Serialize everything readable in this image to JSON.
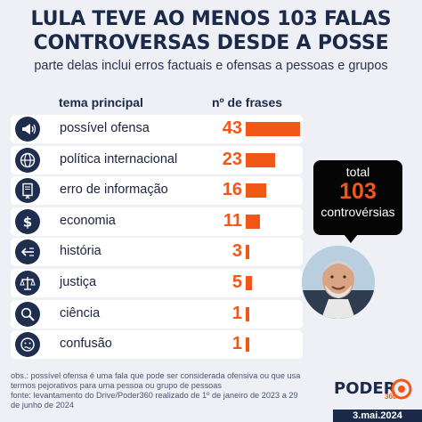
{
  "header": {
    "title_line1": "LULA TEVE AO MENOS 103 FALAS",
    "title_line2": "CONTROVERSAS DESDE A POSSE",
    "subtitle": "parte delas inclui erros factuais e ofensas a pessoas e grupos"
  },
  "columns": {
    "topic": "tema principal",
    "count": "nº de frases"
  },
  "chart_data": {
    "type": "bar",
    "orientation": "horizontal",
    "title": "LULA TEVE AO MENOS 103 FALAS CONTROVERSAS DESDE A POSSE",
    "subtitle": "parte delas inclui erros factuais e ofensas a pessoas e grupos",
    "categories": [
      "possível ofensa",
      "política internacional",
      "erro de informação",
      "economia",
      "história",
      "justiça",
      "ciência",
      "confusão"
    ],
    "values": [
      43,
      23,
      16,
      11,
      3,
      5,
      1,
      1
    ],
    "bar_color": "#f2571a"
  },
  "rows": [
    {
      "label": "possível ofensa",
      "value": "43",
      "icon": "megaphone-icon"
    },
    {
      "label": "política internacional",
      "value": "23",
      "icon": "globe-icon"
    },
    {
      "label": "erro de informação",
      "value": "16",
      "icon": "document-error-icon"
    },
    {
      "label": "economia",
      "value": "11",
      "icon": "dollar-icon"
    },
    {
      "label": "história",
      "value": "3",
      "icon": "arrow-left-icon"
    },
    {
      "label": "justiça",
      "value": "5",
      "icon": "scales-icon"
    },
    {
      "label": "ciência",
      "value": "1",
      "icon": "magnifier-icon"
    },
    {
      "label": "confusão",
      "value": "1",
      "icon": "confused-face-icon"
    }
  ],
  "total": {
    "label_top": "total",
    "value": "103",
    "label_bottom": "controvérsias"
  },
  "footer": {
    "line1": "obs.: possível ofensa é uma fala que pode ser considerada ofensiva ou que usa",
    "line2": "termos pejorativos para uma pessoa ou grupo de pessoas",
    "line3": "fonte: levantamento do Drive/Poder360 realizado de 1º de janeiro de 2023 a 29",
    "line4": "de junho de 2024"
  },
  "brand": {
    "name": "PODER",
    "number": "360",
    "date": "3.mai.2024"
  },
  "colors": {
    "accent": "#f2571a",
    "navy": "#1c2a4a",
    "background": "#eef0f6"
  }
}
